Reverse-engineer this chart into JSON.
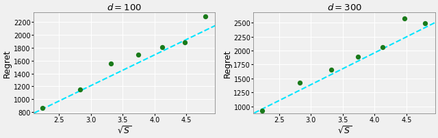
{
  "plot1": {
    "title": "$d = 100$",
    "xlabel": "$\\sqrt{S}$",
    "ylabel": "Regret",
    "scatter_x": [
      2.236,
      2.828,
      3.317,
      3.742,
      4.123,
      4.472,
      4.796
    ],
    "scatter_y": [
      860,
      1150,
      1560,
      1695,
      1810,
      1890,
      2290
    ],
    "fit_slope": 480.0,
    "fit_intercept": -230.0,
    "ylim": [
      780,
      2350
    ],
    "xlim": [
      2.1,
      4.95
    ],
    "yticks": [
      800,
      1000,
      1200,
      1400,
      1600,
      1800,
      2000,
      2200
    ],
    "xticks": [
      2.5,
      3.0,
      3.5,
      4.0,
      4.5
    ]
  },
  "plot2": {
    "title": "$d = 300$",
    "xlabel": "$\\sqrt{S}$",
    "ylabel": "Regret",
    "scatter_x": [
      2.236,
      2.828,
      3.317,
      3.742,
      4.123,
      4.472,
      4.796
    ],
    "scatter_y": [
      920,
      1430,
      1660,
      1890,
      2060,
      2580,
      2490
    ],
    "fit_slope": 570.0,
    "fit_intercept": -320.0,
    "ylim": [
      880,
      2680
    ],
    "xlim": [
      2.1,
      4.95
    ],
    "yticks": [
      1000,
      1250,
      1500,
      1750,
      2000,
      2250,
      2500
    ],
    "xticks": [
      2.5,
      3.0,
      3.5,
      4.0,
      4.5
    ]
  },
  "dot_color": "#1a7a1a",
  "line_color": "#00e5ff",
  "bg_color": "#f0f0f0",
  "grid_color": "#ffffff",
  "axis_color": "#888888"
}
